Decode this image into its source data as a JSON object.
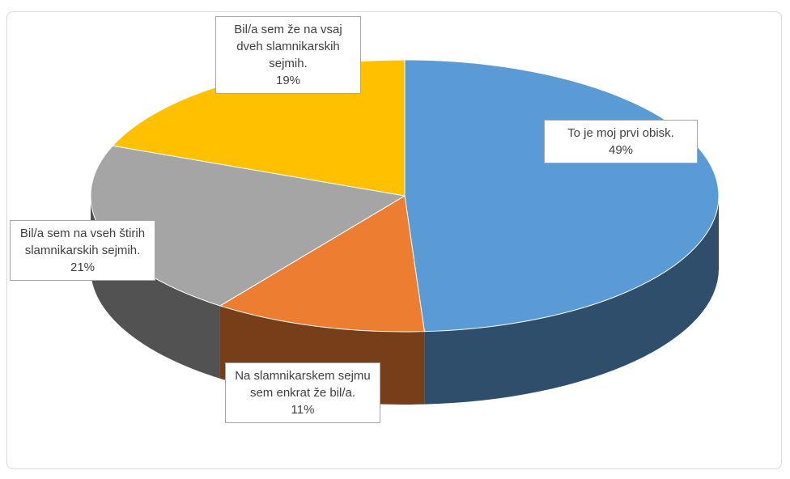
{
  "chart_data": {
    "type": "pie",
    "categories": [
      "To je moj prvi obisk.",
      "Na slamnikarskem sejmu sem enkrat že bil/a.",
      "Bil/a sem na vseh štirih slamnikarskih sejmih.",
      "Bil/a sem že na vsaj dveh slamnikarskih sejmih."
    ],
    "values": [
      49,
      11,
      21,
      19
    ],
    "value_labels": [
      "49%",
      "11%",
      "21%",
      "19%"
    ],
    "colors": [
      "#5b9bd5",
      "#ed7d31",
      "#a5a5a5",
      "#ffc000"
    ]
  }
}
